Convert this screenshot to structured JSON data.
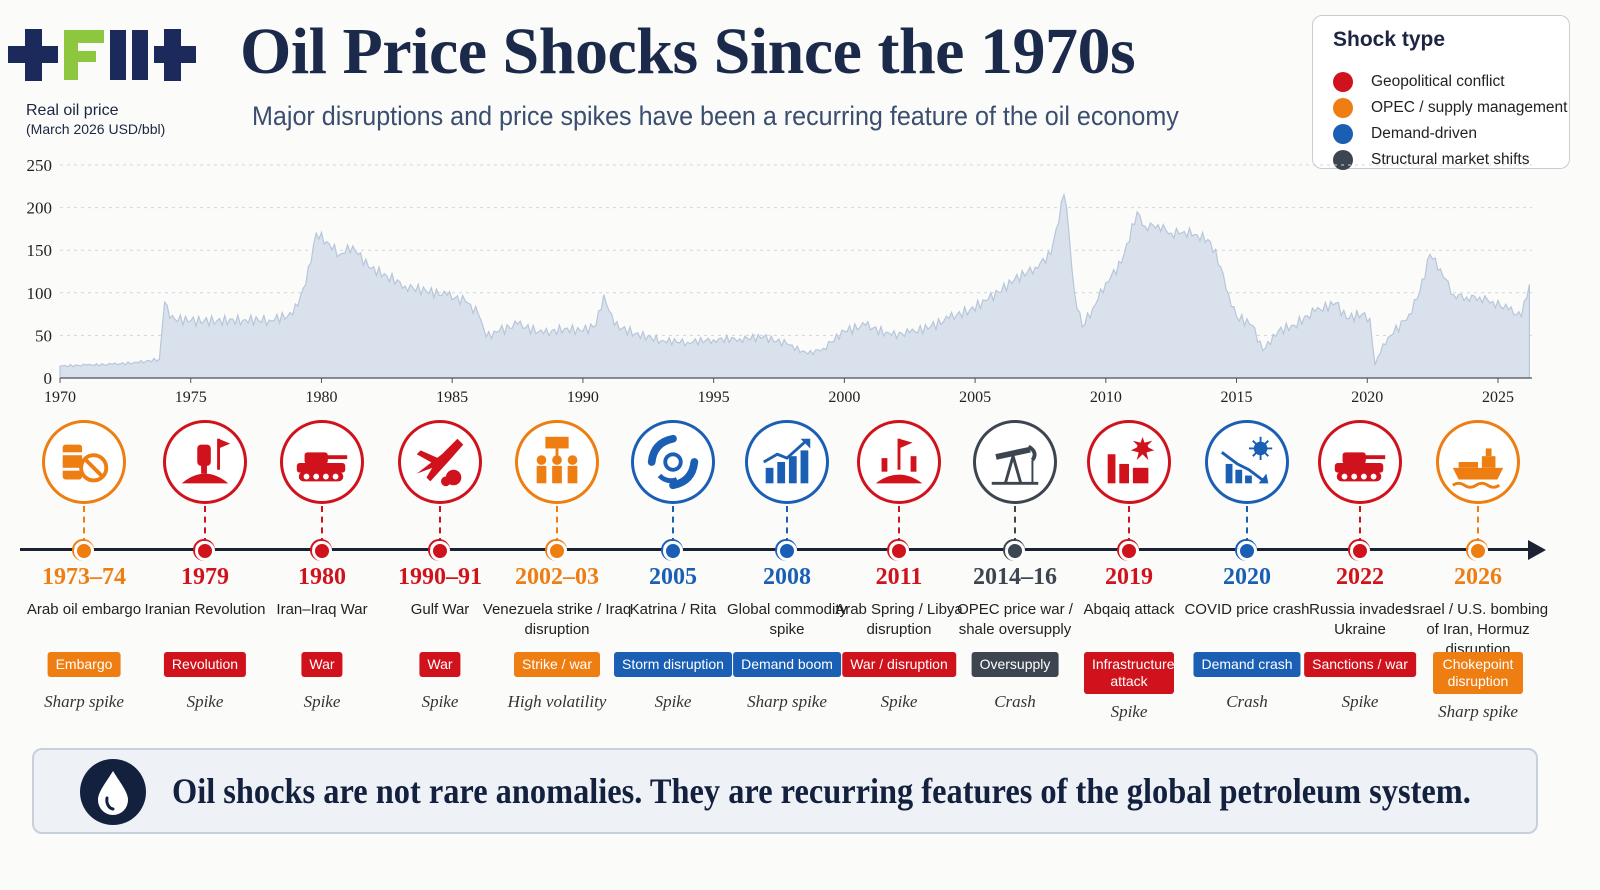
{
  "header": {
    "logo_text": "+FII+",
    "title": "Oil Price Shocks Since the 1970s",
    "subtitle": "Major disruptions and price spikes have been a recurring feature of the oil economy"
  },
  "legend": {
    "title": "Shock type",
    "items": [
      {
        "label": "Geopolitical conflict",
        "color": "#d0121c"
      },
      {
        "label": "OPEC / supply management",
        "color": "#ee7d12"
      },
      {
        "label": "Demand-driven",
        "color": "#1a5fb4"
      },
      {
        "label": "Structural market shifts",
        "color": "#3d4550"
      }
    ]
  },
  "chart_data": {
    "type": "area",
    "ylabel": "Real oil price",
    "ylabel_units": "(March 2026 USD/bbl)",
    "ylim": [
      0,
      250
    ],
    "xlim": [
      1970,
      2026.3
    ],
    "yticks": [
      0,
      50,
      100,
      150,
      200,
      250
    ],
    "xticks": [
      1970,
      1975,
      1980,
      1985,
      1990,
      1995,
      2000,
      2005,
      2010,
      2015,
      2020,
      2025
    ],
    "grid": true,
    "fill_color": "#d9e1ec",
    "line_color": "#b8c6d9",
    "x": [
      1970,
      1971,
      1972,
      1973,
      1973.8,
      1974.0,
      1974.2,
      1975,
      1976,
      1977,
      1978,
      1978.9,
      1979.4,
      1979.8,
      1980.2,
      1980.7,
      1981.2,
      1981.8,
      1982.5,
      1983.2,
      1984,
      1984.8,
      1985.5,
      1986.0,
      1986.3,
      1986.8,
      1987.5,
      1988.5,
      1989.3,
      1990.0,
      1990.5,
      1990.8,
      1991.2,
      1992,
      1993,
      1994,
      1995,
      1996,
      1996.9,
      1997.8,
      1998.6,
      1999.2,
      2000.0,
      2000.8,
      2001.8,
      2002.5,
      2003.3,
      2004.0,
      2004.8,
      2005.5,
      2006.5,
      2007.3,
      2007.9,
      2008.4,
      2008.5,
      2008.8,
      2009.1,
      2009.5,
      2010.0,
      2010.6,
      2011.2,
      2011.5,
      2012.0,
      2012.5,
      2013.0,
      2013.5,
      2014.0,
      2014.4,
      2014.7,
      2015.0,
      2015.6,
      2016.0,
      2016.6,
      2017.2,
      2018.0,
      2018.8,
      2019.2,
      2019.8,
      2020.1,
      2020.3,
      2020.6,
      2021.0,
      2021.6,
      2022.0,
      2022.4,
      2022.8,
      2023.3,
      2023.8,
      2024.3,
      2024.8,
      2025.4,
      2025.9,
      2026.2
    ],
    "y": [
      14,
      15,
      16,
      18,
      22,
      89,
      70,
      67,
      67,
      68,
      68,
      74,
      110,
      170,
      160,
      145,
      155,
      130,
      120,
      108,
      102,
      97,
      90,
      75,
      48,
      55,
      63,
      52,
      58,
      55,
      62,
      98,
      62,
      52,
      44,
      42,
      45,
      46,
      48,
      40,
      28,
      35,
      55,
      62,
      50,
      53,
      60,
      70,
      80,
      92,
      115,
      130,
      145,
      215,
      200,
      100,
      60,
      82,
      112,
      135,
      195,
      178,
      180,
      170,
      172,
      168,
      160,
      130,
      98,
      72,
      62,
      32,
      55,
      62,
      78,
      88,
      70,
      75,
      70,
      15,
      40,
      52,
      75,
      100,
      145,
      128,
      98,
      95,
      95,
      90,
      80,
      72,
      110
    ]
  },
  "events": [
    {
      "year": "1973–74",
      "name": "Arab oil embargo",
      "badge": "Embargo",
      "effect": "Sharp spike",
      "type": "opec",
      "icon": "oil-barrel-embargo-icon"
    },
    {
      "year": "1979",
      "name": "Iranian Revolution",
      "badge": "Revolution",
      "effect": "Spike",
      "type": "geo",
      "icon": "raised-fist-revolution-icon"
    },
    {
      "year": "1980",
      "name": "Iran–Iraq War",
      "badge": "War",
      "effect": "Spike",
      "type": "geo",
      "icon": "tank-icon"
    },
    {
      "year": "1990–91",
      "name": "Gulf War",
      "badge": "War",
      "effect": "Spike",
      "type": "geo",
      "icon": "fighter-jet-icon"
    },
    {
      "year": "2002–03",
      "name": "Venezuela strike / Iraq disruption",
      "badge": "Strike / war",
      "effect": "High volatility",
      "type": "opec",
      "icon": "protest-crowd-icon"
    },
    {
      "year": "2005",
      "name": "Katrina / Rita",
      "badge": "Storm disruption",
      "effect": "Spike",
      "type": "demand",
      "icon": "hurricane-icon"
    },
    {
      "year": "2008",
      "name": "Global commodity spike",
      "badge": "Demand boom",
      "effect": "Sharp spike",
      "type": "demand",
      "icon": "rising-bar-chart-icon"
    },
    {
      "year": "2011",
      "name": "Arab Spring / Libya disruption",
      "badge": "War / disruption",
      "effect": "Spike",
      "type": "geo",
      "icon": "uprising-flag-icon"
    },
    {
      "year": "2014–16",
      "name": "OPEC price war / shale oversupply",
      "badge": "Oversupply",
      "effect": "Crash",
      "type": "struct",
      "icon": "oil-pumpjack-icon"
    },
    {
      "year": "2019",
      "name": "Abqaiq attack",
      "badge": "Infrastructure attack",
      "effect": "Spike",
      "type": "geo",
      "icon": "refinery-explosion-icon"
    },
    {
      "year": "2020",
      "name": "COVID price crash",
      "badge": "Demand crash",
      "effect": "Crash",
      "type": "demand",
      "icon": "virus-falling-chart-icon"
    },
    {
      "year": "2022",
      "name": "Russia invades Ukraine",
      "badge": "Sanctions / war",
      "effect": "Spike",
      "type": "geo",
      "icon": "tank-icon"
    },
    {
      "year": "2026",
      "name": "Israel / U.S. bombing of Iran, Hormuz disruption",
      "badge": "Chokepoint disruption",
      "effect": "Sharp spike",
      "type": "opec",
      "icon": "tanker-ship-icon"
    }
  ],
  "banner": {
    "text": "Oil shocks are not rare anomalies. They are recurring features of the global petroleum system.",
    "icon": "oil-drop-icon"
  }
}
